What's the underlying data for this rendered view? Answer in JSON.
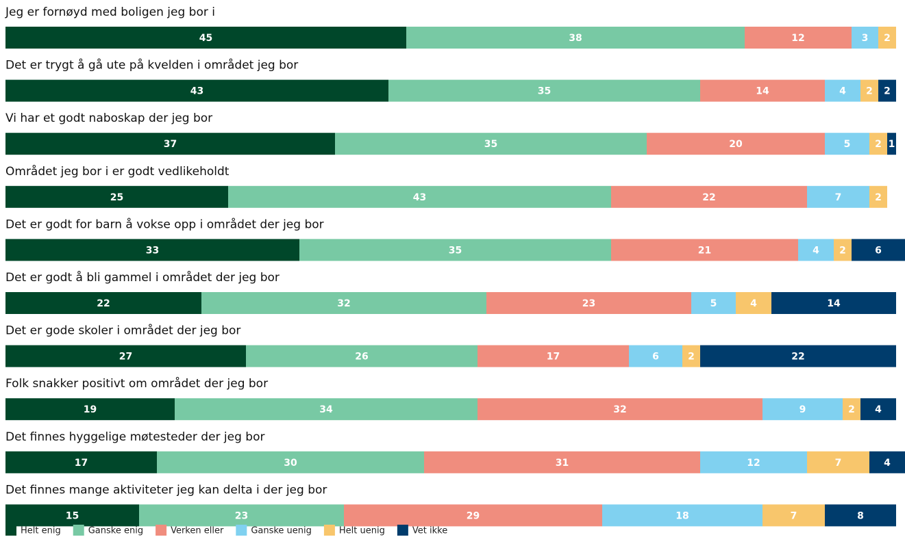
{
  "chart_data": {
    "type": "stacked-bar-horizontal",
    "categories": [
      "Jeg er fornøyd med boligen jeg bor i",
      "Det er trygt å gå ute på kvelden i området jeg bor",
      "Vi har et godt naboskap der jeg bor",
      "Området jeg bor i er godt vedlikeholdt",
      "Det er godt for barn å vokse opp i området der jeg bor",
      "Det er godt å bli gammel i området der jeg bor",
      "Det er gode skoler i området der jeg bor",
      "Folk snakker positivt om området der jeg bor",
      "Det finnes hyggelige møtesteder der jeg bor",
      "Det finnes mange aktiviteter jeg kan delta i der jeg bor"
    ],
    "series": [
      {
        "name": "Helt enig",
        "color": "#00472a",
        "values": [
          45,
          43,
          37,
          25,
          33,
          22,
          27,
          19,
          17,
          15
        ]
      },
      {
        "name": "Ganske enig",
        "color": "#78c9a4",
        "values": [
          38,
          35,
          35,
          43,
          35,
          32,
          26,
          34,
          30,
          23
        ]
      },
      {
        "name": "Verken eller",
        "color": "#f08d7e",
        "values": [
          12,
          14,
          20,
          22,
          21,
          23,
          17,
          32,
          31,
          29
        ]
      },
      {
        "name": "Ganske uenig",
        "color": "#80d1f0",
        "values": [
          3,
          4,
          5,
          7,
          4,
          5,
          6,
          9,
          12,
          18
        ]
      },
      {
        "name": "Helt uenig",
        "color": "#f8c66c",
        "values": [
          2,
          2,
          2,
          2,
          2,
          4,
          2,
          2,
          7,
          7
        ]
      },
      {
        "name": "Vet ikke",
        "color": "#003c6c",
        "values": [
          null,
          2,
          1,
          null,
          6,
          14,
          22,
          4,
          4,
          8
        ]
      }
    ],
    "xlim": [
      0,
      101
    ]
  }
}
